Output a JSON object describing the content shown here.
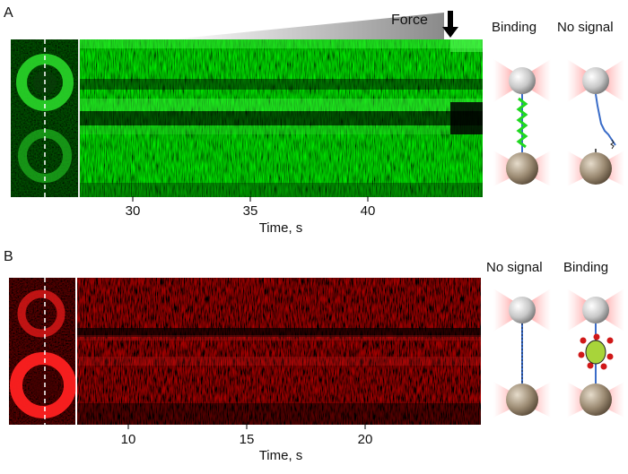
{
  "panels": [
    {
      "letter": "A",
      "force_label": "Force",
      "axis_title": "Time, s",
      "ticks": [
        "30",
        "35",
        "40"
      ],
      "diagram_labels": [
        "Binding",
        "No signal"
      ],
      "kymograph_color": "#20e020"
    },
    {
      "letter": "B",
      "axis_title": "Time, s",
      "ticks": [
        "10",
        "15",
        "20"
      ],
      "diagram_labels": [
        "No signal",
        "Binding"
      ],
      "kymograph_color": "#e01010"
    }
  ]
}
